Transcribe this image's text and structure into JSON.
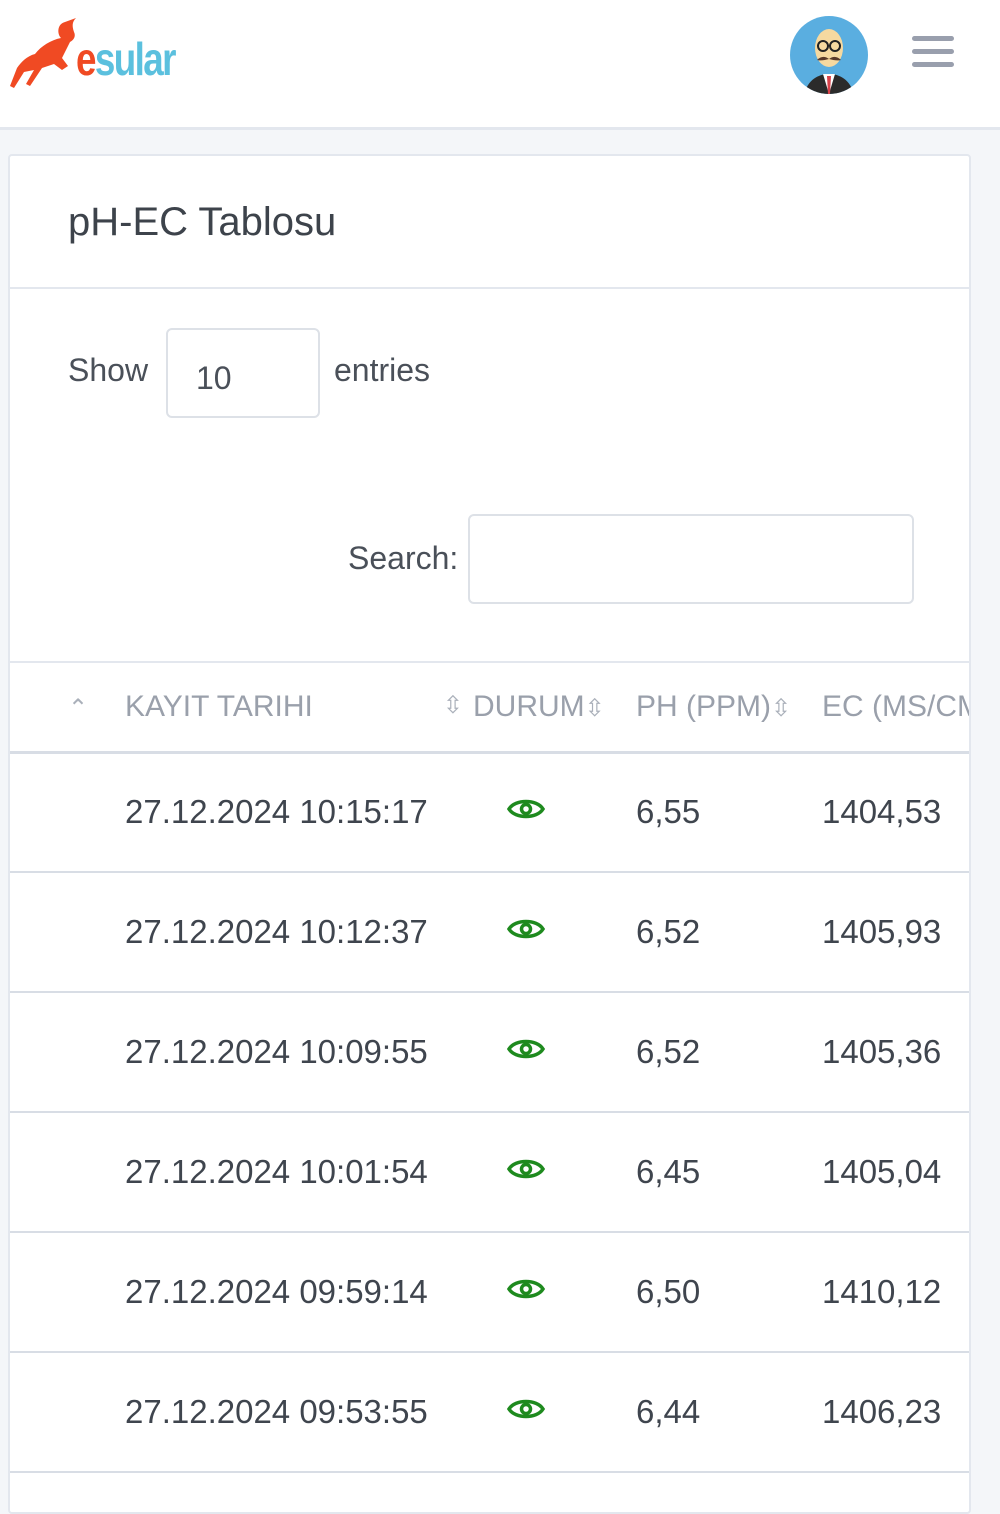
{
  "header": {
    "logo_text_e": "e",
    "logo_text_rest": "sular",
    "avatar_alt": "user-avatar",
    "menu_icon": "hamburger-icon"
  },
  "card": {
    "title": "pH-EC Tablosu"
  },
  "length": {
    "show": "Show",
    "value": "10",
    "entries": "entries"
  },
  "search": {
    "label": "Search:",
    "value": ""
  },
  "table": {
    "columns": [
      "KAYIT TARIHI",
      "DURUM",
      "PH (PPM)",
      "EC (MS/CM"
    ],
    "rows": [
      {
        "date": "27.12.2024 10:15:17",
        "status": "eye-icon",
        "ph": "6,55",
        "ec": "1404,53"
      },
      {
        "date": "27.12.2024 10:12:37",
        "status": "eye-icon",
        "ph": "6,52",
        "ec": "1405,93"
      },
      {
        "date": "27.12.2024 10:09:55",
        "status": "eye-icon",
        "ph": "6,52",
        "ec": "1405,36"
      },
      {
        "date": "27.12.2024 10:01:54",
        "status": "eye-icon",
        "ph": "6,45",
        "ec": "1405,04"
      },
      {
        "date": "27.12.2024 09:59:14",
        "status": "eye-icon",
        "ph": "6,50",
        "ec": "1410,12"
      },
      {
        "date": "27.12.2024 09:53:55",
        "status": "eye-icon",
        "ph": "6,44",
        "ec": "1406,23"
      }
    ]
  },
  "colors": {
    "eye": "#1e8a1e",
    "logo_red": "#f04a23",
    "logo_blue": "#5bc0de"
  }
}
